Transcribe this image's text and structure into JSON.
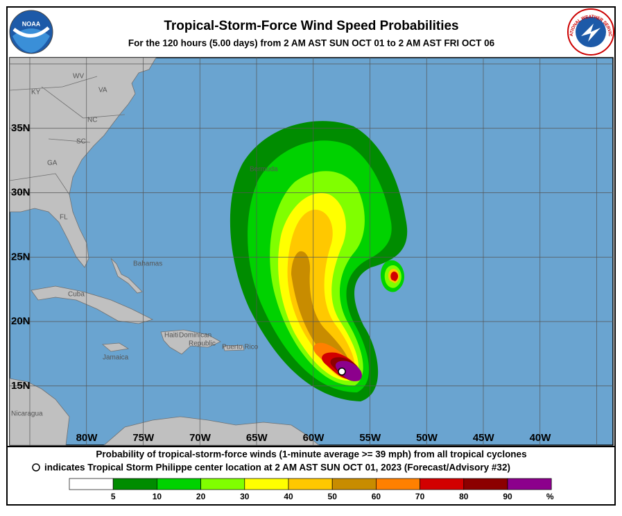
{
  "header": {
    "title": "Tropical-Storm-Force Wind Speed Probabilities",
    "subtitle": "For the 120 hours (5.00 days) from 2 AM AST SUN OCT 01 to 2 AM AST FRI OCT 06"
  },
  "logos": {
    "noaa": "NOAA",
    "nws": "NATIONAL WEATHER SERVICE"
  },
  "map": {
    "lat_labels": [
      "35N",
      "30N",
      "25N",
      "20N",
      "15N"
    ],
    "lon_labels": [
      "80W",
      "75W",
      "70W",
      "65W",
      "60W",
      "55W",
      "50W",
      "45W",
      "40W"
    ],
    "places": [
      "KY",
      "WV",
      "VA",
      "NC",
      "SC",
      "GA",
      "FL",
      "Bermuda",
      "Bahamas",
      "Cuba",
      "Haiti",
      "Dominican",
      "Republic",
      "Puerto Rico",
      "Jamaica",
      "Nicaragua"
    ]
  },
  "footer": {
    "line1": "Probability of tropical-storm-force winds (1-minute average >= 39 mph) from all tropical cyclones",
    "line2": "indicates Tropical Storm Philippe center location at 2 AM AST SUN OCT 01, 2023 (Forecast/Advisory #32)"
  },
  "legend": {
    "colors": [
      "#ffffff",
      "#008c00",
      "#00d200",
      "#80ff00",
      "#ffff00",
      "#ffc800",
      "#c88c00",
      "#ff8000",
      "#d20000",
      "#8c0000",
      "#8c008c"
    ],
    "labels": [
      5,
      10,
      20,
      30,
      40,
      50,
      60,
      70,
      80,
      90
    ],
    "unit": "%"
  }
}
